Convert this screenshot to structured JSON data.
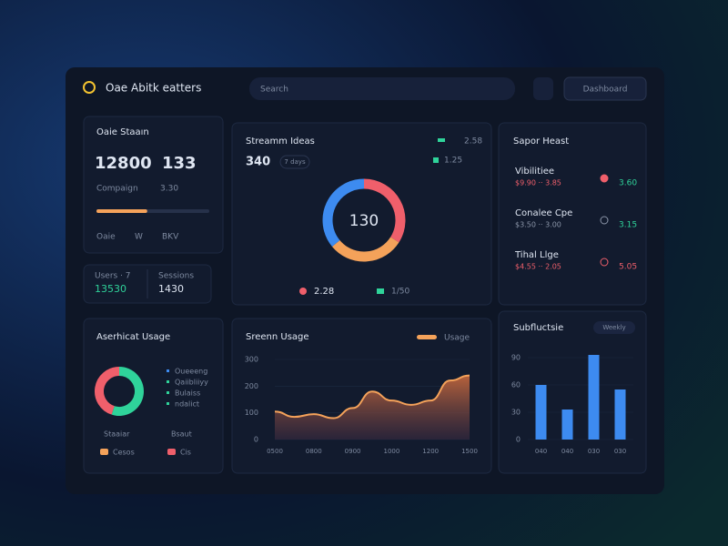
{
  "header": {
    "title": "Oae Abitk eatters",
    "search": "Search",
    "button": "Dashboard"
  },
  "status": {
    "title": "Oaie Staaın",
    "value": "12800",
    "secondary": "133",
    "label": "Compaign",
    "label_value": "3.30",
    "progress": 45,
    "progress_color": "#f4a25a",
    "footer": [
      "Oaie",
      "W",
      "BKV"
    ]
  },
  "stats": [
    {
      "label": "Users · 7",
      "value": "13530"
    },
    {
      "label": "Sessions",
      "value": "1430"
    }
  ],
  "streams": {
    "title": "Streamm Ideas",
    "value": "340",
    "badge": "7 days",
    "legend": [
      "2.58",
      "1.25"
    ],
    "donut": {
      "type": "pie",
      "center": "130",
      "values": [
        34,
        30,
        36
      ],
      "colors": [
        "#ef5f6b",
        "#f4a25a",
        "#3d8bf0"
      ]
    },
    "bottom_legend": [
      {
        "name": "2.28",
        "color": "#ef5f6b"
      },
      {
        "name": "1/50",
        "color": "#2fd39a"
      }
    ]
  },
  "sapor": {
    "title": "Sapor Heast",
    "items": [
      {
        "name": "Vibilitiee",
        "sub": "$9.90 ·· 3.85",
        "value": "3.60",
        "color": "#ef5f6b"
      },
      {
        "name": "Conalee Cpe",
        "sub": "$3.50 ·· 3.00",
        "value": "3.15",
        "color": "#8b95a8"
      },
      {
        "name": "Tihal Llge",
        "sub": "$4.55 ·· 2.05",
        "value": "5.05",
        "color": "#ef5f6b"
      }
    ]
  },
  "usage": {
    "title": "Aserhicat Usage",
    "donut": {
      "type": "pie",
      "values": [
        55,
        45
      ],
      "colors": [
        "#2fd39a",
        "#ef5f6b"
      ]
    },
    "legend": [
      "Oueeeng",
      "Qaiibliiyy",
      "Bulaiss",
      "ndalict"
    ],
    "bottom": [
      {
        "name": "Staaiar",
        "value": "Cesos",
        "color": "#f4a25a"
      },
      {
        "name": "Bsaut",
        "value": "Cis",
        "color": "#ef5f6b"
      }
    ]
  },
  "area_chart": {
    "type": "area",
    "title": "Sreenn Usage",
    "legend": "Usage",
    "color": "#f4a25a",
    "categories": [
      "0500",
      null,
      "0800",
      null,
      "0900",
      null,
      "1000",
      null,
      "1200",
      null,
      "1500"
    ],
    "values": [
      105,
      85,
      95,
      80,
      118,
      180,
      146,
      130,
      146,
      221,
      240
    ],
    "ylim": [
      0,
      300
    ],
    "yticks": [
      0,
      100,
      200,
      300
    ]
  },
  "bar_chart": {
    "type": "bar",
    "title": "Subfluctsie",
    "badge": "Weekly",
    "color": "#3d8bf0",
    "categories": [
      "040",
      "040",
      "030",
      "030"
    ],
    "values": [
      60,
      33,
      93,
      55
    ],
    "ylim": [
      0,
      90
    ],
    "yticks": [
      0,
      30,
      60,
      90
    ]
  }
}
